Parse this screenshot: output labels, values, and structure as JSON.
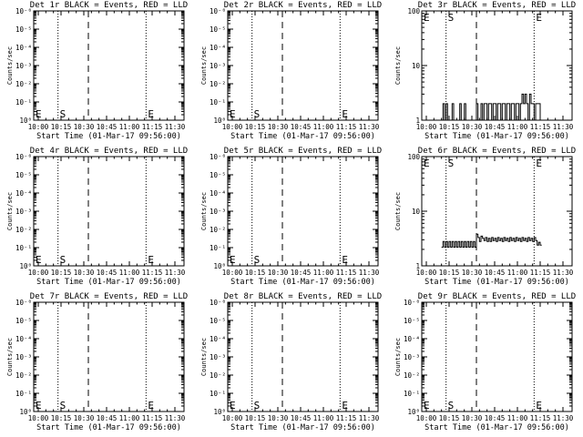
{
  "figure": {
    "background": "#ffffff",
    "foreground": "#000000"
  },
  "chart_data": [
    {
      "type": "line",
      "title": "Det 1r BLACK = Events, RED = LLD",
      "xlabel": "Start Time (01-Mar-17 09:56:00)",
      "ylabel": "Counts/sec",
      "xticks": [
        "10:00",
        "10:15",
        "10:30",
        "10:45",
        "11:00",
        "11:15",
        "11:30"
      ],
      "xlim": [
        "09:57",
        "11:36"
      ],
      "yscale": "log",
      "ylim": [
        1,
        1e-06
      ],
      "ytick_labels": [
        "10⁰",
        "10⁻¹",
        "10⁻²",
        "10⁻³",
        "10⁻⁴",
        "10⁻⁵",
        "10⁻⁶"
      ],
      "markers": [
        {
          "label": "E",
          "time": "09:57",
          "style": "dotted"
        },
        {
          "label": "S",
          "time": "10:13",
          "style": "dotted"
        },
        {
          "label": "",
          "time": "10:33",
          "style": "dashed"
        },
        {
          "label": "E",
          "time": "11:11",
          "style": "dotted"
        }
      ],
      "series": []
    },
    {
      "type": "line",
      "title": "Det 2r BLACK = Events, RED = LLD",
      "xlabel": "Start Time (01-Mar-17 09:56:00)",
      "ylabel": "Counts/sec",
      "xticks": [
        "10:00",
        "10:15",
        "10:30",
        "10:45",
        "11:00",
        "11:15",
        "11:30"
      ],
      "xlim": [
        "09:57",
        "11:36"
      ],
      "yscale": "log",
      "ylim": [
        1,
        1e-06
      ],
      "ytick_labels": [
        "10⁰",
        "10⁻¹",
        "10⁻²",
        "10⁻³",
        "10⁻⁴",
        "10⁻⁵",
        "10⁻⁶"
      ],
      "markers": [
        {
          "label": "E",
          "time": "09:57",
          "style": "dotted"
        },
        {
          "label": "S",
          "time": "10:13",
          "style": "dotted"
        },
        {
          "label": "",
          "time": "10:33",
          "style": "dashed"
        },
        {
          "label": "E",
          "time": "11:11",
          "style": "dotted"
        }
      ],
      "series": []
    },
    {
      "type": "line",
      "title": "Det 3r BLACK = Events, RED = LLD",
      "xlabel": "Start Time (01-Mar-17 09:56:00)",
      "ylabel": "Counts/sec",
      "xticks": [
        "10:00",
        "10:15",
        "10:30",
        "10:45",
        "11:00",
        "11:15",
        "11:30"
      ],
      "xlim": [
        "09:57",
        "11:36"
      ],
      "yscale": "log",
      "ylim": [
        1,
        100
      ],
      "ytick_labels": [
        "1",
        "10",
        "100"
      ],
      "markers": [
        {
          "label": "E",
          "time": "09:57",
          "style": "dotted"
        },
        {
          "label": "S",
          "time": "10:13",
          "style": "dotted"
        },
        {
          "label": "",
          "time": "10:33",
          "style": "dashed"
        },
        {
          "label": "E",
          "time": "11:11",
          "style": "dotted"
        }
      ],
      "series": [
        {
          "color": "#000000",
          "x": [
            "10:10",
            "10:11",
            "10:12",
            "10:13",
            "10:14",
            "10:15",
            "10:16",
            "10:17",
            "10:18",
            "10:19",
            "10:20",
            "10:21",
            "10:22",
            "10:23",
            "10:24",
            "10:25",
            "10:26",
            "10:27",
            "10:28",
            "10:29",
            "10:30",
            "10:31",
            "10:32",
            "10:33",
            "10:34",
            "10:35",
            "10:36",
            "10:37",
            "10:38",
            "10:39",
            "10:40",
            "10:41",
            "10:42",
            "10:43",
            "10:44",
            "10:45",
            "10:46",
            "10:47",
            "10:48",
            "10:49",
            "10:50",
            "10:51",
            "10:52",
            "10:53",
            "10:54",
            "10:55",
            "10:56",
            "10:57",
            "10:58",
            "10:59",
            "11:00",
            "11:01",
            "11:02",
            "11:03",
            "11:04",
            "11:05",
            "11:06",
            "11:07",
            "11:08",
            "11:09",
            "11:10",
            "11:11",
            "11:12",
            "11:13",
            "11:14",
            "11:15"
          ],
          "y": [
            1,
            2,
            1,
            2,
            1,
            1,
            1,
            2,
            1,
            1,
            1,
            1,
            2,
            1,
            1,
            2,
            1,
            1,
            1,
            1,
            1,
            1,
            1,
            2,
            1,
            1,
            2,
            1,
            2,
            2,
            1,
            2,
            2,
            1,
            2,
            2,
            1,
            2,
            2,
            1,
            2,
            2,
            1,
            2,
            2,
            1,
            2,
            2,
            1,
            2,
            2,
            1,
            2,
            3,
            2,
            3,
            2,
            1,
            3,
            2,
            2,
            1,
            2,
            2,
            2,
            1
          ]
        }
      ]
    },
    {
      "type": "line",
      "title": "Det 4r BLACK = Events, RED = LLD",
      "xlabel": "Start Time (01-Mar-17 09:56:00)",
      "ylabel": "Counts/sec",
      "xticks": [
        "10:00",
        "10:15",
        "10:30",
        "10:45",
        "11:00",
        "11:15",
        "11:30"
      ],
      "xlim": [
        "09:57",
        "11:36"
      ],
      "yscale": "log",
      "ylim": [
        1,
        1e-06
      ],
      "ytick_labels": [
        "10⁰",
        "10⁻¹",
        "10⁻²",
        "10⁻³",
        "10⁻⁴",
        "10⁻⁵",
        "10⁻⁶"
      ],
      "markers": [
        {
          "label": "E",
          "time": "09:57",
          "style": "dotted"
        },
        {
          "label": "S",
          "time": "10:13",
          "style": "dotted"
        },
        {
          "label": "",
          "time": "10:33",
          "style": "dashed"
        },
        {
          "label": "E",
          "time": "11:11",
          "style": "dotted"
        }
      ],
      "series": []
    },
    {
      "type": "line",
      "title": "Det 5r BLACK = Events, RED = LLD",
      "xlabel": "Start Time (01-Mar-17 09:56:00)",
      "ylabel": "Counts/sec",
      "xticks": [
        "10:00",
        "10:15",
        "10:30",
        "10:45",
        "11:00",
        "11:15",
        "11:30"
      ],
      "xlim": [
        "09:57",
        "11:36"
      ],
      "yscale": "log",
      "ylim": [
        1,
        1e-06
      ],
      "ytick_labels": [
        "10⁰",
        "10⁻¹",
        "10⁻²",
        "10⁻³",
        "10⁻⁴",
        "10⁻⁵",
        "10⁻⁶"
      ],
      "markers": [
        {
          "label": "E",
          "time": "09:57",
          "style": "dotted"
        },
        {
          "label": "S",
          "time": "10:13",
          "style": "dotted"
        },
        {
          "label": "",
          "time": "10:33",
          "style": "dashed"
        },
        {
          "label": "E",
          "time": "11:11",
          "style": "dotted"
        }
      ],
      "series": []
    },
    {
      "type": "line",
      "title": "Det 6r BLACK = Events, RED = LLD",
      "xlabel": "Start Time (01-Mar-17 09:56:00)",
      "ylabel": "Counts/sec",
      "xticks": [
        "10:00",
        "10:15",
        "10:30",
        "10:45",
        "11:00",
        "11:15",
        "11:30"
      ],
      "xlim": [
        "09:57",
        "11:36"
      ],
      "yscale": "log",
      "ylim": [
        1,
        100
      ],
      "ytick_labels": [
        "1",
        "10",
        "100"
      ],
      "markers": [
        {
          "label": "E",
          "time": "09:57",
          "style": "dotted"
        },
        {
          "label": "S",
          "time": "10:13",
          "style": "dotted"
        },
        {
          "label": "",
          "time": "10:33",
          "style": "dashed"
        },
        {
          "label": "E",
          "time": "11:11",
          "style": "dotted"
        }
      ],
      "series": [
        {
          "color": "#000000",
          "x": [
            "10:10",
            "10:11",
            "10:12",
            "10:13",
            "10:14",
            "10:15",
            "10:16",
            "10:17",
            "10:18",
            "10:19",
            "10:20",
            "10:21",
            "10:22",
            "10:23",
            "10:24",
            "10:25",
            "10:26",
            "10:27",
            "10:28",
            "10:29",
            "10:30",
            "10:31",
            "10:32",
            "10:33",
            "10:34",
            "10:35",
            "10:36",
            "10:37",
            "10:38",
            "10:39",
            "10:40",
            "10:41",
            "10:42",
            "10:43",
            "10:44",
            "10:45",
            "10:46",
            "10:47",
            "10:48",
            "10:49",
            "10:50",
            "10:51",
            "10:52",
            "10:53",
            "10:54",
            "10:55",
            "10:56",
            "10:57",
            "10:58",
            "10:59",
            "11:00",
            "11:01",
            "11:02",
            "11:03",
            "11:04",
            "11:05",
            "11:06",
            "11:07",
            "11:08",
            "11:09",
            "11:10",
            "11:11",
            "11:12",
            "11:13",
            "11:14",
            "11:15"
          ],
          "y": [
            2.2,
            2.8,
            2.2,
            2.8,
            2.2,
            2.8,
            2.2,
            2.8,
            2.2,
            2.8,
            2.2,
            2.8,
            2.2,
            2.8,
            2.2,
            2.8,
            2.2,
            2.8,
            2.2,
            2.8,
            2.2,
            2.8,
            2.2,
            3.8,
            3.3,
            2.8,
            3.5,
            3.2,
            2.9,
            3.3,
            2.8,
            3.2,
            2.8,
            3.3,
            2.9,
            3.2,
            2.8,
            3.3,
            2.9,
            3.2,
            2.8,
            3.3,
            2.9,
            3.2,
            2.8,
            3.3,
            2.9,
            3.2,
            2.8,
            3.3,
            2.9,
            3.2,
            2.8,
            3.3,
            2.9,
            3.2,
            2.8,
            3.3,
            2.9,
            3.2,
            2.8,
            3.3,
            2.9,
            2.4,
            2.7,
            2.4
          ]
        }
      ]
    },
    {
      "type": "line",
      "title": "Det 7r BLACK = Events, RED = LLD",
      "xlabel": "Start Time (01-Mar-17 09:56:00)",
      "ylabel": "Counts/sec",
      "xticks": [
        "10:00",
        "10:15",
        "10:30",
        "10:45",
        "11:00",
        "11:15",
        "11:30"
      ],
      "xlim": [
        "09:57",
        "11:36"
      ],
      "yscale": "log",
      "ylim": [
        1,
        1e-06
      ],
      "ytick_labels": [
        "10⁰",
        "10⁻¹",
        "10⁻²",
        "10⁻³",
        "10⁻⁴",
        "10⁻⁵",
        "10⁻⁶"
      ],
      "markers": [
        {
          "label": "E",
          "time": "09:57",
          "style": "dotted"
        },
        {
          "label": "S",
          "time": "10:13",
          "style": "dotted"
        },
        {
          "label": "",
          "time": "10:33",
          "style": "dashed"
        },
        {
          "label": "E",
          "time": "11:11",
          "style": "dotted"
        }
      ],
      "series": []
    },
    {
      "type": "line",
      "title": "Det 8r BLACK = Events, RED = LLD",
      "xlabel": "Start Time (01-Mar-17 09:56:00)",
      "ylabel": "Counts/sec",
      "xticks": [
        "10:00",
        "10:15",
        "10:30",
        "10:45",
        "11:00",
        "11:15",
        "11:30"
      ],
      "xlim": [
        "09:57",
        "11:36"
      ],
      "yscale": "log",
      "ylim": [
        1,
        1e-06
      ],
      "ytick_labels": [
        "10⁰",
        "10⁻¹",
        "10⁻²",
        "10⁻³",
        "10⁻⁴",
        "10⁻⁵",
        "10⁻⁶"
      ],
      "markers": [
        {
          "label": "E",
          "time": "09:57",
          "style": "dotted"
        },
        {
          "label": "S",
          "time": "10:13",
          "style": "dotted"
        },
        {
          "label": "",
          "time": "10:33",
          "style": "dashed"
        },
        {
          "label": "E",
          "time": "11:11",
          "style": "dotted"
        }
      ],
      "series": []
    },
    {
      "type": "line",
      "title": "Det 9r BLACK = Events, RED = LLD",
      "xlabel": "Start Time (01-Mar-17 09:56:00)",
      "ylabel": "Counts/sec",
      "xticks": [
        "10:00",
        "10:15",
        "10:30",
        "10:45",
        "11:00",
        "11:15",
        "11:30"
      ],
      "xlim": [
        "09:57",
        "11:36"
      ],
      "yscale": "log",
      "ylim": [
        1,
        1e-06
      ],
      "ytick_labels": [
        "10⁰",
        "10⁻¹",
        "10⁻²",
        "10⁻³",
        "10⁻⁴",
        "10⁻⁵",
        "10⁻⁶"
      ],
      "markers": [
        {
          "label": "E",
          "time": "09:57",
          "style": "dotted"
        },
        {
          "label": "S",
          "time": "10:13",
          "style": "dotted"
        },
        {
          "label": "",
          "time": "10:33",
          "style": "dashed"
        },
        {
          "label": "E",
          "time": "11:11",
          "style": "dotted"
        }
      ],
      "series": []
    }
  ]
}
